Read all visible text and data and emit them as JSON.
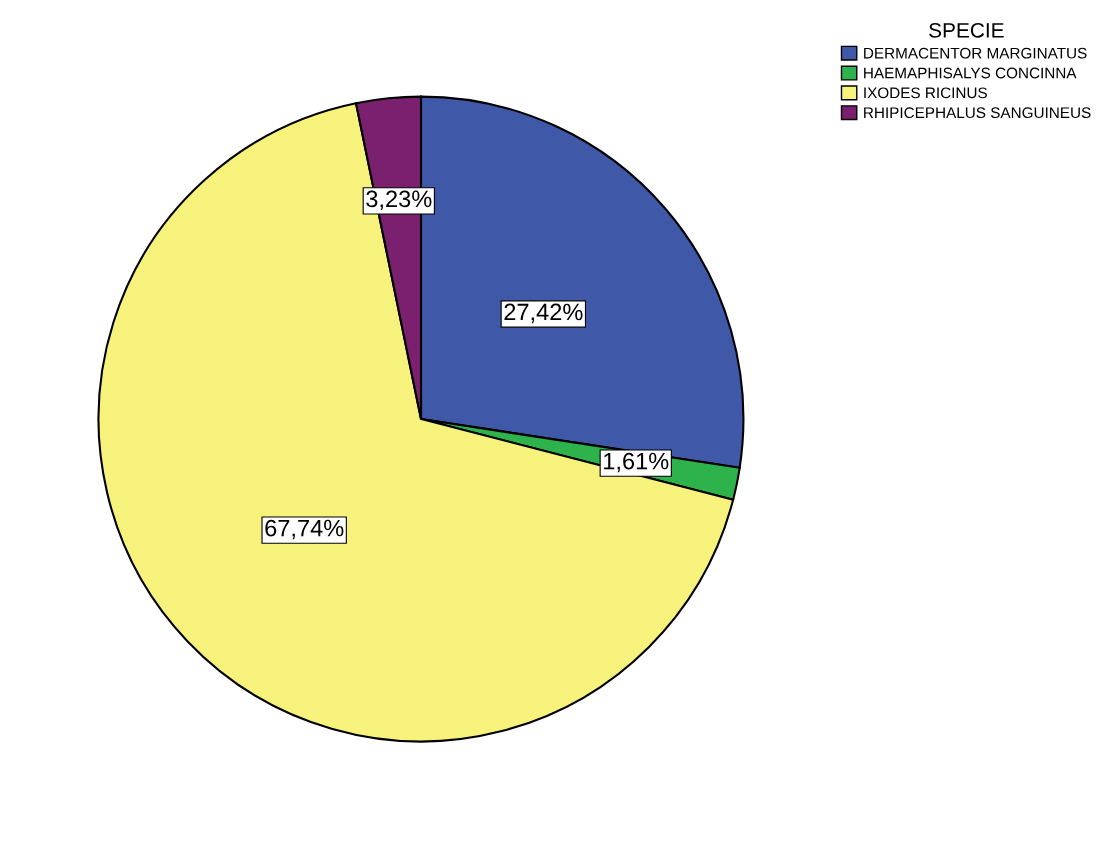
{
  "chart_data": {
    "type": "pie",
    "legend_title": "SPECIE",
    "legend": "top right",
    "categories": [
      "DERMACENTOR MARGINATUS",
      "HAEMAPHISALYS CONCINNA",
      "IXODES RICINUS",
      "RHIPICEPHALUS SANGUINEUS"
    ],
    "values": [
      27.42,
      1.61,
      67.74,
      3.23
    ],
    "value_labels": [
      "27,42%",
      "1,61%",
      "67,74%",
      "3,23%"
    ],
    "colors": [
      "#3f58a8",
      "#2eb24b",
      "#f7f27c",
      "#7a206e"
    ]
  }
}
